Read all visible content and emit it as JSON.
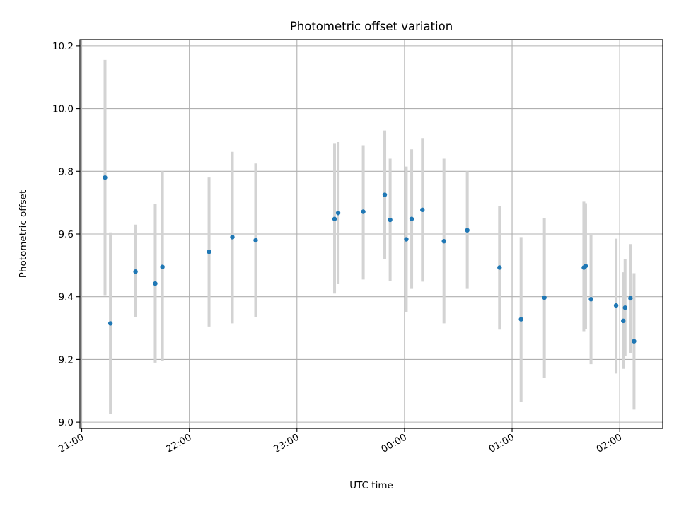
{
  "chart_data": {
    "type": "scatter",
    "title": "Photometric offset variation",
    "xlabel": "UTC time",
    "ylabel": "Photometric offset",
    "x_axis_type": "time",
    "xlim": [
      "20:59",
      "02:24"
    ],
    "ylim": [
      8.98,
      10.22
    ],
    "grid": true,
    "x_ticks": [
      "21:00",
      "22:00",
      "23:00",
      "00:00",
      "01:00",
      "02:00"
    ],
    "y_ticks": [
      "9.0",
      "9.2",
      "9.4",
      "9.6",
      "9.8",
      "10.0",
      "10.2"
    ],
    "colors": {
      "point": "#1f77b4",
      "errorbar": "#d3d3d3",
      "grid": "#b0b0b0"
    },
    "series": [
      {
        "points": [
          {
            "x": "21:13",
            "y": 9.78,
            "low": 9.405,
            "high": 10.155
          },
          {
            "x": "21:16",
            "y": 9.315,
            "low": 9.025,
            "high": 9.605
          },
          {
            "x": "21:30",
            "y": 9.48,
            "low": 9.335,
            "high": 9.63
          },
          {
            "x": "21:41",
            "y": 9.442,
            "low": 9.19,
            "high": 9.695
          },
          {
            "x": "21:45",
            "y": 9.495,
            "low": 9.195,
            "high": 9.8
          },
          {
            "x": "22:11",
            "y": 9.543,
            "low": 9.305,
            "high": 9.78
          },
          {
            "x": "22:24",
            "y": 9.59,
            "low": 9.315,
            "high": 9.862
          },
          {
            "x": "22:37",
            "y": 9.58,
            "low": 9.335,
            "high": 9.825
          },
          {
            "x": "23:21",
            "y": 9.648,
            "low": 9.41,
            "high": 9.89
          },
          {
            "x": "23:23",
            "y": 9.667,
            "low": 9.44,
            "high": 9.893
          },
          {
            "x": "23:37",
            "y": 9.671,
            "low": 9.455,
            "high": 9.883
          },
          {
            "x": "23:49",
            "y": 9.725,
            "low": 9.52,
            "high": 9.93
          },
          {
            "x": "23:52",
            "y": 9.645,
            "low": 9.45,
            "high": 9.84
          },
          {
            "x": "00:01",
            "y": 9.583,
            "low": 9.35,
            "high": 9.815
          },
          {
            "x": "00:04",
            "y": 9.648,
            "low": 9.425,
            "high": 9.87
          },
          {
            "x": "00:10",
            "y": 9.677,
            "low": 9.448,
            "high": 9.906
          },
          {
            "x": "00:22",
            "y": 9.577,
            "low": 9.315,
            "high": 9.84
          },
          {
            "x": "00:35",
            "y": 9.612,
            "low": 9.425,
            "high": 9.8
          },
          {
            "x": "00:53",
            "y": 9.493,
            "low": 9.295,
            "high": 9.69
          },
          {
            "x": "01:05",
            "y": 9.328,
            "low": 9.065,
            "high": 9.59
          },
          {
            "x": "01:18",
            "y": 9.397,
            "low": 9.14,
            "high": 9.65
          },
          {
            "x": "01:40",
            "y": 9.493,
            "low": 9.29,
            "high": 9.703
          },
          {
            "x": "01:41",
            "y": 9.498,
            "low": 9.298,
            "high": 9.698
          },
          {
            "x": "01:44",
            "y": 9.392,
            "low": 9.185,
            "high": 9.597
          },
          {
            "x": "01:58",
            "y": 9.372,
            "low": 9.155,
            "high": 9.585
          },
          {
            "x": "02:02",
            "y": 9.323,
            "low": 9.17,
            "high": 9.478
          },
          {
            "x": "02:03",
            "y": 9.365,
            "low": 9.21,
            "high": 9.52
          },
          {
            "x": "02:06",
            "y": 9.395,
            "low": 9.22,
            "high": 9.568
          },
          {
            "x": "02:08",
            "y": 9.258,
            "low": 9.04,
            "high": 9.475
          }
        ]
      }
    ]
  }
}
